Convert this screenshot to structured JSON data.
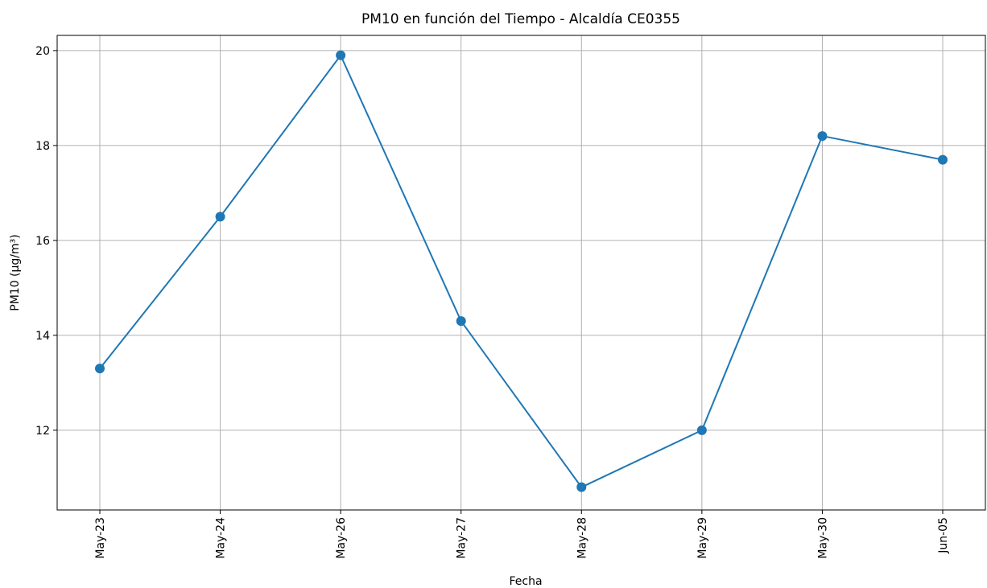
{
  "chart_data": {
    "type": "line",
    "title": "PM10 en función del Tiempo - Alcaldía CE0355",
    "x_label": "Fecha",
    "y_label": "PM10 (µg/m³)",
    "categories": [
      "May-23",
      "May-24",
      "May-26",
      "May-27",
      "May-28",
      "May-29",
      "May-30",
      "Jun-05"
    ],
    "series": [
      {
        "name": "PM10",
        "color": "#1f77b4",
        "values": [
          13.3,
          16.5,
          19.9,
          14.3,
          10.8,
          12.0,
          18.2,
          17.7
        ]
      }
    ],
    "ylim": [
      10.32,
      20.32
    ],
    "yticks": [
      12,
      14,
      16,
      18,
      20
    ],
    "grid": true
  }
}
